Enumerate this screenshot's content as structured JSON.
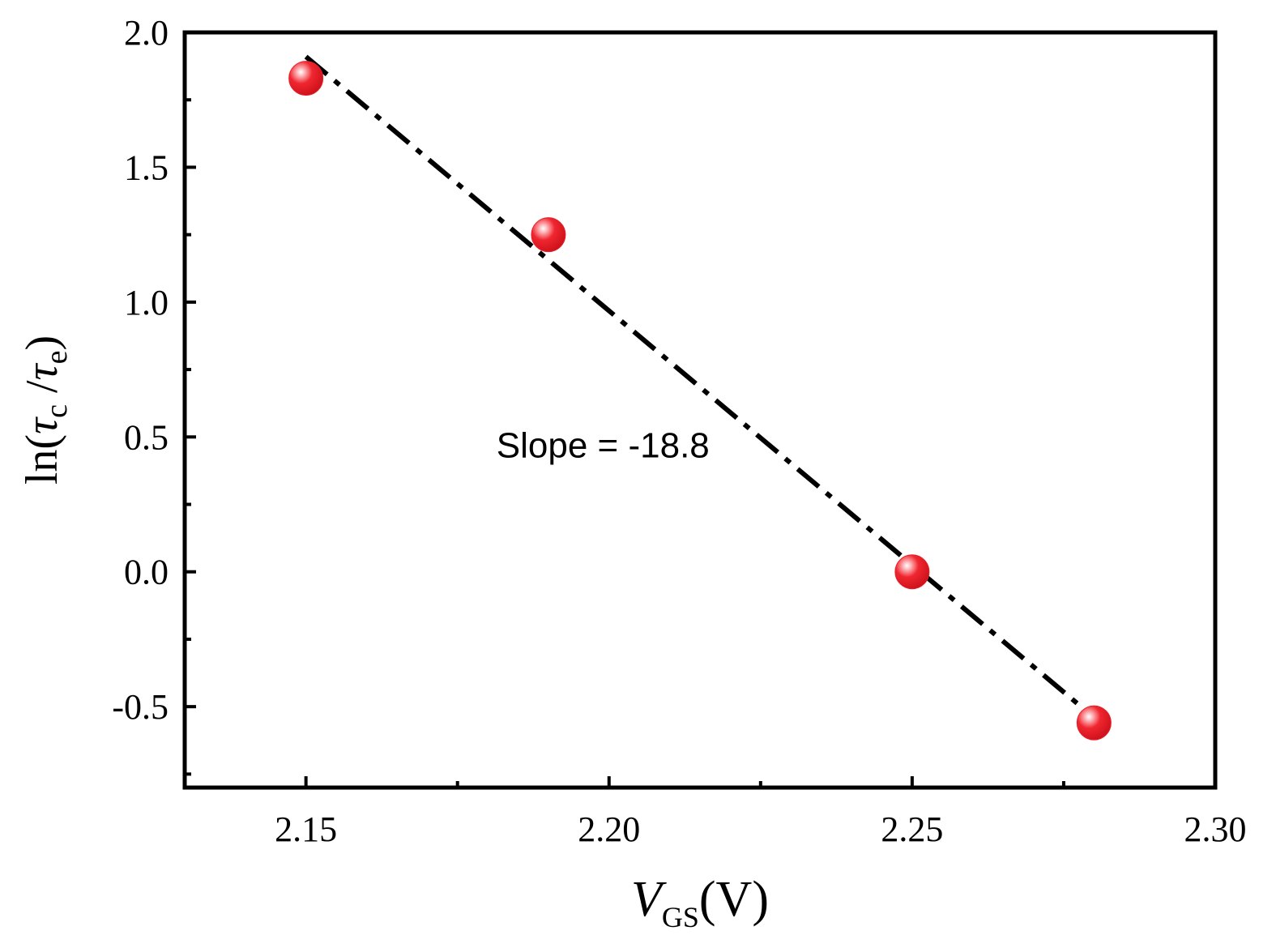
{
  "chart_data": {
    "type": "scatter",
    "title": "",
    "xlabel": {
      "main": "V",
      "sub": "GS",
      "unit": "(V)"
    },
    "ylabel": {
      "prefix": "ln(",
      "tau1": "τ",
      "sub1": "c",
      "slash": " /",
      "tau2": "τ",
      "sub2": "e",
      "suffix": ")"
    },
    "xlim": [
      2.13,
      2.3
    ],
    "ylim": [
      -0.8,
      2.0
    ],
    "x_ticks": [
      2.15,
      2.2,
      2.25,
      2.3
    ],
    "x_tick_labels": [
      "2.15",
      "2.20",
      "2.25",
      "2.30"
    ],
    "y_ticks": [
      -0.5,
      0.0,
      0.5,
      1.0,
      1.5,
      2.0
    ],
    "y_tick_labels": [
      "-0.5",
      "0.0",
      "0.5",
      "1.0",
      "1.5",
      "2.0"
    ],
    "series": [
      {
        "marker_color": "#e8202a",
        "points": [
          {
            "x": 2.15,
            "y": 1.83
          },
          {
            "x": 2.19,
            "y": 1.25
          },
          {
            "x": 2.25,
            "y": 0.0
          },
          {
            "x": 2.28,
            "y": -0.56
          }
        ]
      }
    ],
    "fit_line": {
      "x": [
        2.15,
        2.28
      ],
      "y": [
        1.91,
        -0.54
      ],
      "style": "dash-dot",
      "color": "#000000"
    },
    "annotation": {
      "text": "Slope = -18.8",
      "x": 2.199,
      "y": 0.47
    },
    "grid": false
  }
}
